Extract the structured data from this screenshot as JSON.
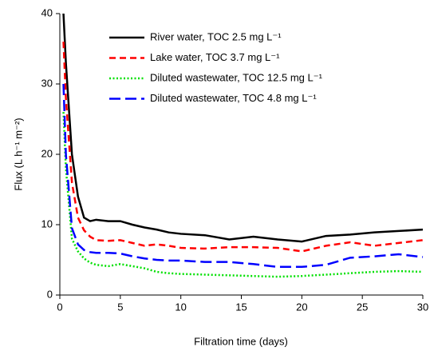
{
  "chart_data": {
    "type": "line",
    "x_label": "Filtration time (days)",
    "y_label": "Flux (L h⁻¹ m⁻²)",
    "x": [
      0.3,
      0.5,
      1,
      1.5,
      2,
      2.5,
      3,
      4,
      5,
      6,
      7,
      8,
      9,
      10,
      12,
      14,
      16,
      18,
      20,
      22,
      24,
      26,
      28,
      30
    ],
    "series": [
      {
        "name": "River water, TOC 2.5 mg L⁻¹",
        "color": "#000000",
        "style": "solid",
        "values": [
          40,
          33,
          20,
          14,
          11,
          10.5,
          10.7,
          10.5,
          10.5,
          10,
          9.6,
          9.3,
          8.9,
          8.7,
          8.5,
          7.9,
          8.3,
          7.9,
          7.6,
          8.4,
          8.6,
          8.9,
          9.1,
          9.3
        ]
      },
      {
        "name": "Lake water, TOC 3.7 mg L⁻¹",
        "color": "#ff0000",
        "style": "dashed",
        "values": [
          36,
          28,
          16,
          11,
          9.2,
          8.3,
          7.8,
          7.7,
          7.8,
          7.4,
          7.0,
          7.2,
          7,
          6.7,
          6.6,
          6.8,
          6.8,
          6.7,
          6.2,
          7,
          7.5,
          7,
          7.4,
          7.8
        ]
      },
      {
        "name": "Diluted wastewater, TOC 12.5 mg L⁻¹",
        "color": "#00e000",
        "style": "dotted",
        "values": [
          26,
          18,
          8,
          6.2,
          5.2,
          4.6,
          4.3,
          4.1,
          4.4,
          4.1,
          3.8,
          3.3,
          3.1,
          3.0,
          2.9,
          2.8,
          2.7,
          2.6,
          2.7,
          2.9,
          3.1,
          3.3,
          3.4,
          3.3
        ]
      },
      {
        "name": "Diluted wastewater, TOC 4.8 mg L⁻¹",
        "color": "#0000ff",
        "style": "long-dashed",
        "values": [
          30,
          20,
          9.5,
          7.2,
          6.4,
          6.1,
          6,
          6,
          5.9,
          5.5,
          5.2,
          5,
          4.9,
          4.9,
          4.7,
          4.7,
          4.4,
          4.0,
          4.0,
          4.3,
          5.3,
          5.5,
          5.8,
          5.4
        ]
      }
    ],
    "xlim": [
      0,
      30
    ],
    "xticks": [
      0,
      5,
      10,
      15,
      20,
      25,
      30
    ],
    "ylim": [
      0,
      40
    ],
    "yticks": [
      0,
      10,
      20,
      30,
      40
    ],
    "legend": "upper right"
  }
}
